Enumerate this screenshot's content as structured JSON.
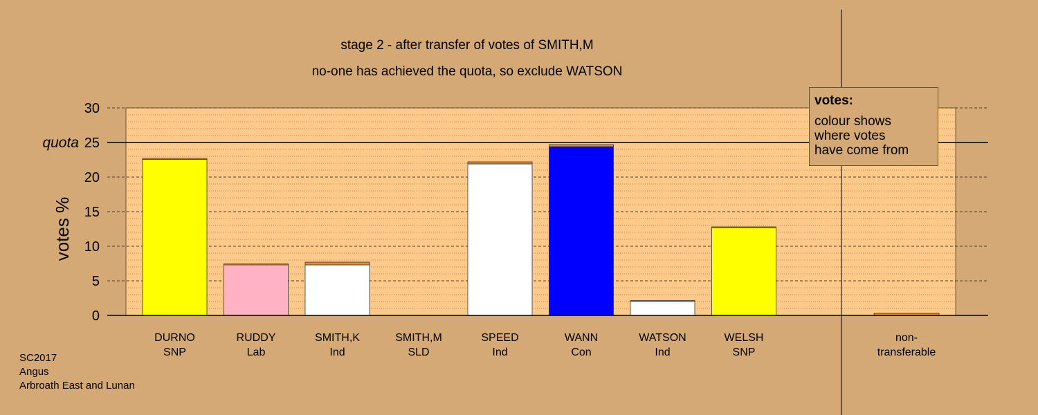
{
  "title_line1": "stage 2 - after transfer of votes of SMITH,M",
  "title_line2": "no-one has achieved the quota, so exclude WATSON",
  "legend": {
    "title": "votes:",
    "body": "colour shows\nwhere votes\nhave come from"
  },
  "footer": [
    "SC2017",
    "Angus",
    "Arbroath East and Lunan"
  ],
  "colors": {
    "background": "#D4A976",
    "plot_bg": "#FFC98A",
    "transfer": "#E8893A"
  },
  "chart_data": {
    "type": "bar",
    "stacked": true,
    "ylabel": "votes %",
    "ylim": [
      0,
      30
    ],
    "yticks": [
      0,
      5,
      10,
      15,
      20,
      25,
      30
    ],
    "quota": 25,
    "quota_label": "quota",
    "grid": true,
    "categories": [
      {
        "name": "DURNO",
        "party": "SNP",
        "color": "#FFFF00",
        "base": 22.6,
        "transferred": 0.1
      },
      {
        "name": "RUDDY",
        "party": "Lab",
        "color": "#FFB2C4",
        "base": 7.4,
        "transferred": 0.05
      },
      {
        "name": "SMITH,K",
        "party": "Ind",
        "color": "#FFFFFF",
        "base": 7.3,
        "transferred": 0.4
      },
      {
        "name": "SMITH,M",
        "party": "SLD",
        "color": "#FFFFFF",
        "base": 0,
        "transferred": 0
      },
      {
        "name": "SPEED",
        "party": "Ind",
        "color": "#FFFFFF",
        "base": 21.9,
        "transferred": 0.3
      },
      {
        "name": "WANN",
        "party": "Con",
        "color": "#0000FF",
        "base": 24.4,
        "transferred": 0.3
      },
      {
        "name": "WATSON",
        "party": "Ind",
        "color": "#FFFFFF",
        "base": 2.1,
        "transferred": 0.05
      },
      {
        "name": "WELSH",
        "party": "SNP",
        "color": "#FFFF00",
        "base": 12.7,
        "transferred": 0.1
      }
    ],
    "nontransferable": {
      "label_line1": "non-",
      "label_line2": "transferable",
      "value": 0.3
    }
  }
}
